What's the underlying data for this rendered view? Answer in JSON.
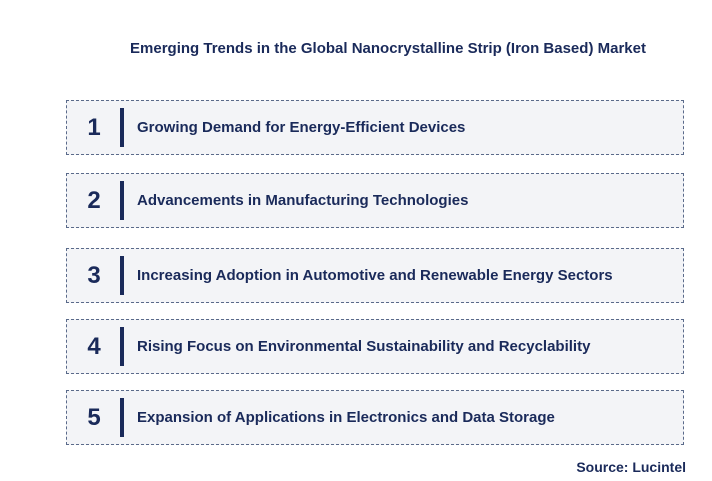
{
  "title": "Emerging Trends in the Global Nanocrystalline Strip (Iron Based) Market",
  "items": [
    {
      "number": "1",
      "label": "Growing Demand for Energy-Efficient Devices"
    },
    {
      "number": "2",
      "label": "Advancements in Manufacturing Technologies"
    },
    {
      "number": "3",
      "label": "Increasing Adoption in Automotive and Renewable Energy Sectors"
    },
    {
      "number": "4",
      "label": "Rising Focus on Environmental Sustainability and Recyclability"
    },
    {
      "number": "5",
      "label": "Expansion of Applications in Electronics and Data Storage"
    }
  ],
  "source": "Source: Lucintel"
}
